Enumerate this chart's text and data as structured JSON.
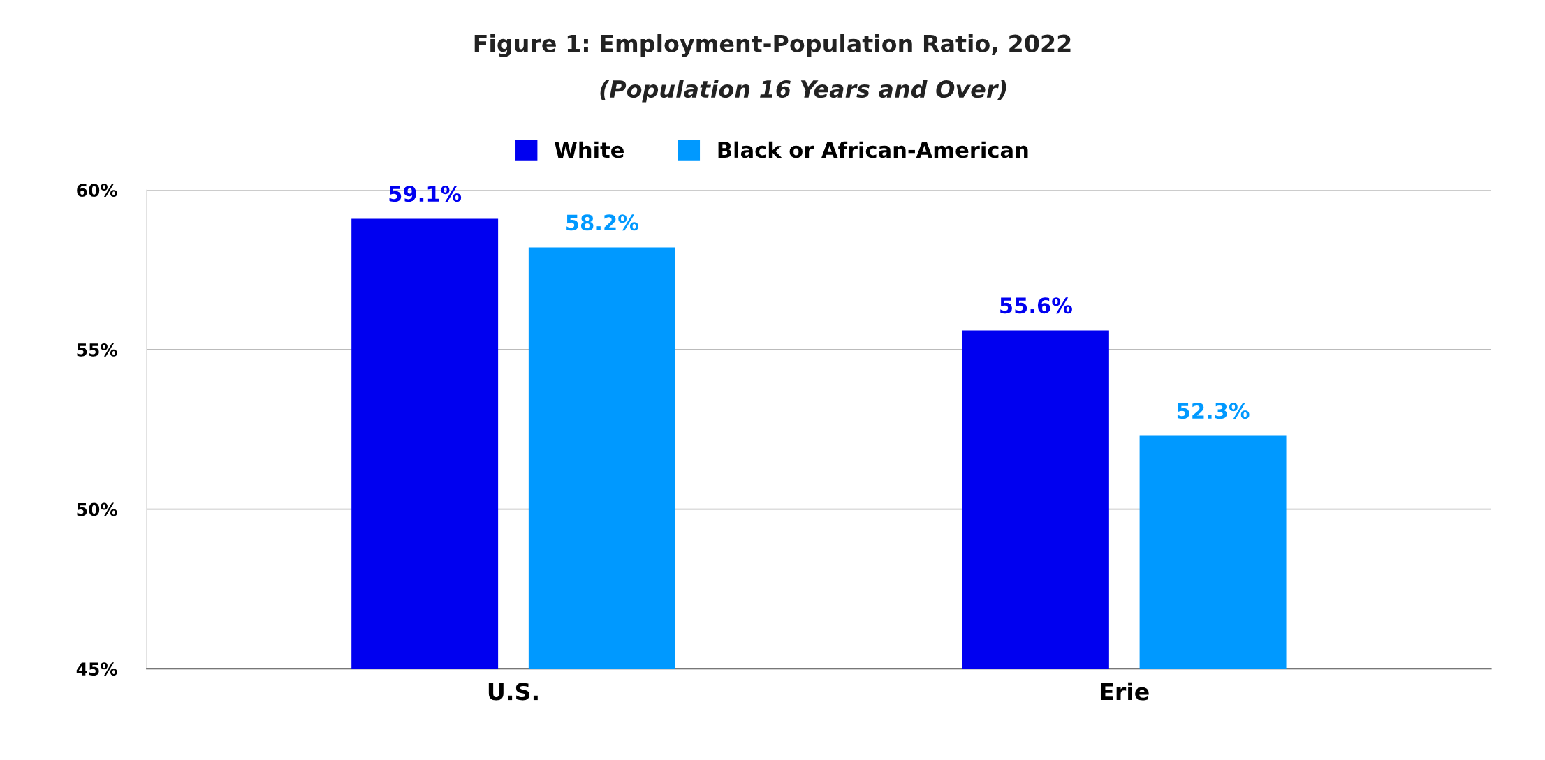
{
  "chart_data": {
    "type": "bar",
    "title": "Figure 1: Employment-Population Ratio, 2022",
    "subtitle": "(Population 16 Years and Over)",
    "categories": [
      "U.S.",
      "Erie"
    ],
    "series": [
      {
        "name": "White",
        "color": "#0000f0",
        "values": [
          59.1,
          55.6
        ],
        "value_labels": [
          "59.1%",
          "55.6%"
        ]
      },
      {
        "name": "Black or African-American",
        "color": "#0099ff",
        "values": [
          58.2,
          52.3
        ],
        "value_labels": [
          "58.2%",
          "52.3%"
        ]
      }
    ],
    "ylim": [
      45,
      60
    ],
    "yticks": [
      {
        "value": 45,
        "label": "45%"
      },
      {
        "value": 50,
        "label": "50%"
      },
      {
        "value": 55,
        "label": "55%"
      },
      {
        "value": 60,
        "label": "60%"
      }
    ],
    "grid": "y",
    "legend": "top"
  }
}
